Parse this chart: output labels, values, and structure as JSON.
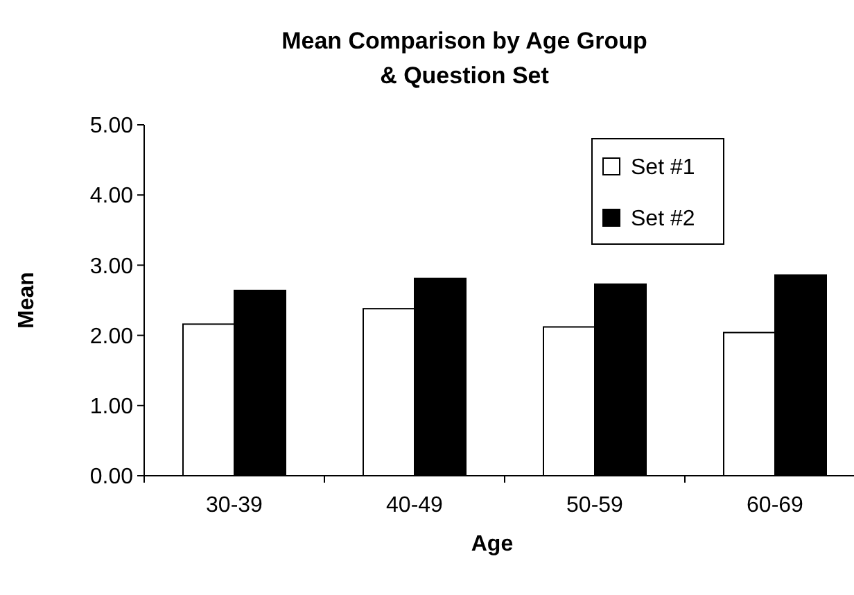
{
  "chart_data": {
    "type": "bar",
    "title": "Mean Comparison by Age Group\n& Question Set",
    "xlabel": "Age",
    "ylabel": "Mean",
    "categories": [
      "30-39",
      "40-49",
      "50-59",
      "60-69"
    ],
    "series": [
      {
        "name": "Set #1",
        "color": "#ffffff",
        "values": [
          2.16,
          2.38,
          2.12,
          2.04
        ]
      },
      {
        "name": "Set #2",
        "color": "#000000",
        "values": [
          2.64,
          2.81,
          2.73,
          2.86
        ]
      }
    ],
    "ylim": [
      0,
      5
    ],
    "yticks": [
      {
        "value": 0,
        "label": "0.00"
      },
      {
        "value": 1,
        "label": "1.00"
      },
      {
        "value": 2,
        "label": "2.00"
      },
      {
        "value": 3,
        "label": "3.00"
      },
      {
        "value": 4,
        "label": "4.00"
      },
      {
        "value": 5,
        "label": "5.00"
      }
    ],
    "grid": false,
    "legend": "top right"
  }
}
